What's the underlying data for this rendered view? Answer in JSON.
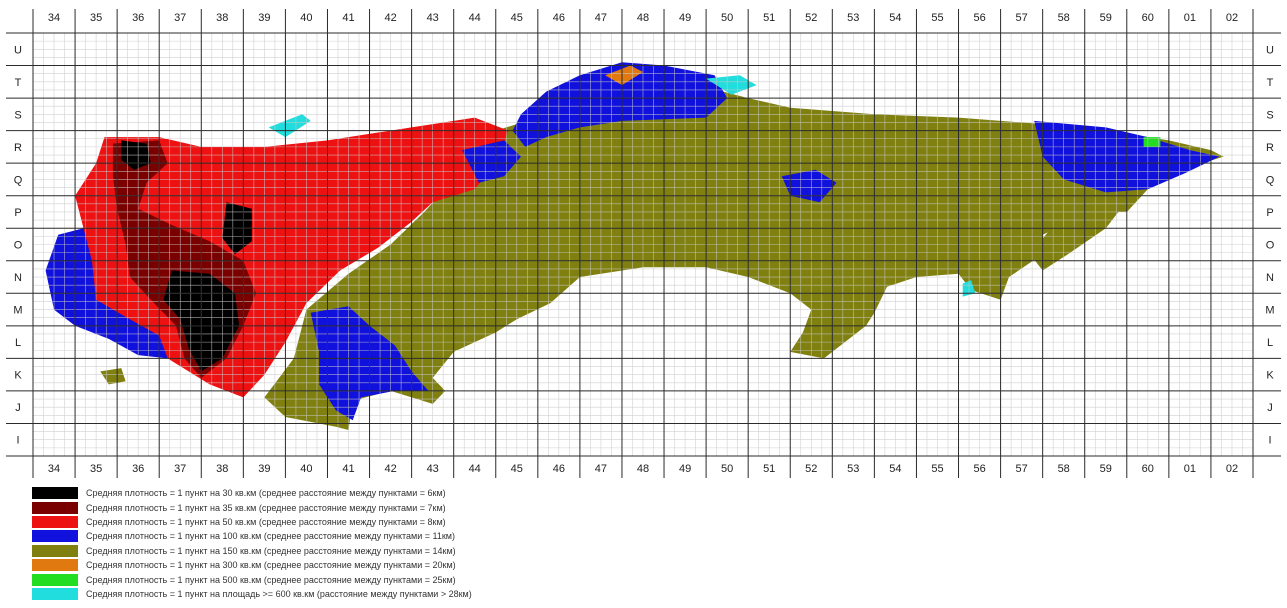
{
  "map": {
    "title": "",
    "columns": [
      "34",
      "35",
      "36",
      "37",
      "38",
      "39",
      "40",
      "41",
      "42",
      "43",
      "44",
      "45",
      "46",
      "47",
      "48",
      "49",
      "50",
      "51",
      "52",
      "53",
      "54",
      "55",
      "56",
      "57",
      "58",
      "59",
      "60",
      "01",
      "02"
    ],
    "rows": [
      "U",
      "T",
      "S",
      "R",
      "Q",
      "P",
      "O",
      "N",
      "M",
      "L",
      "K",
      "J",
      "I"
    ],
    "colors": {
      "background": "#ffffff",
      "fine_grid": "#c9c9c9",
      "major_grid": "#2b2b2b",
      "black": "#000000",
      "dark_red": "#7a0000",
      "red": "#ee1111",
      "blue": "#1111dd",
      "olive": "#808010",
      "orange": "#e07a10",
      "green": "#22dd22",
      "cyan": "#22dddd"
    }
  },
  "legend": {
    "items": [
      {
        "color": "#000000",
        "label": "Средняя плотность = 1 пункт на 30 кв.км (среднее расстояние между пунктами = 6км)"
      },
      {
        "color": "#7a0000",
        "label": "Средняя плотность = 1 пункт на 35 кв.км (среднее расстояние между пунктами = 7км)"
      },
      {
        "color": "#ee1111",
        "label": "Средняя плотность = 1 пункт на 50 кв.км (среднее расстояние между пунктами = 8км)"
      },
      {
        "color": "#1111dd",
        "label": "Средняя плотность = 1 пункт на 100 кв.км (среднее расстояние между пунктами = 11км)"
      },
      {
        "color": "#808010",
        "label": "Средняя плотность = 1 пункт на 150 кв.км (среднее расстояние между пунктами = 14км)"
      },
      {
        "color": "#e07a10",
        "label": "Средняя плотность = 1 пункт на 300 кв.км (среднее расстояние между пунктами = 20км)"
      },
      {
        "color": "#22dd22",
        "label": "Средняя плотность = 1 пункт на 500 кв.км (среднее расстояние между пунктами = 25км)"
      },
      {
        "color": "#22dddd",
        "label": "Средняя плотность = 1 пункт на площадь >= 600 кв.км (расстояние между пунктами > 28км)"
      }
    ]
  }
}
